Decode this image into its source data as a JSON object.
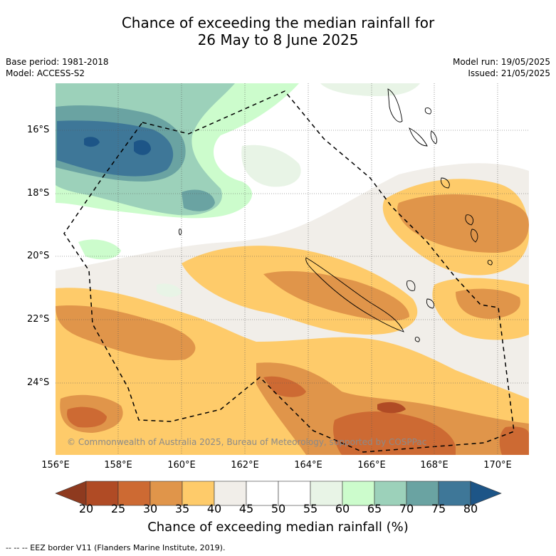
{
  "title_line1": "Chance of exceeding the median rainfall for",
  "title_line2": "26 May to 8 June 2025",
  "base_period": "Base period: 1981-2018",
  "model": "Model: ACCESS-S2",
  "model_run": "Model run: 19/05/2025",
  "issued": "Issued: 21/05/2025",
  "copyright": "© Commonwealth of Australia 2025, Bureau of Meteorology, supported by COSPPac",
  "lat_labels": [
    "16°S",
    "18°S",
    "20°S",
    "22°S",
    "24°S"
  ],
  "lon_labels": [
    "156°E",
    "158°E",
    "160°E",
    "162°E",
    "164°E",
    "166°E",
    "168°E",
    "170°E"
  ],
  "colorbar": {
    "ticks": [
      "20",
      "25",
      "30",
      "35",
      "40",
      "45",
      "50",
      "55",
      "60",
      "65",
      "70",
      "75",
      "80"
    ],
    "colors": [
      "#8e3a1f",
      "#b04b25",
      "#cd6a33",
      "#e0954a",
      "#fecb6a",
      "#f1eee9",
      "#ffffff",
      "#ffffff",
      "#e8f4e6",
      "#ccfccc",
      "#9cd1ba",
      "#6aa3a2",
      "#3e7798",
      "#1d5587"
    ],
    "title": "Chance of exceeding median rainfall (%)"
  },
  "eez_note": "--  --  -- EEZ border V11 (Flanders Marine Institute, 2019)."
}
